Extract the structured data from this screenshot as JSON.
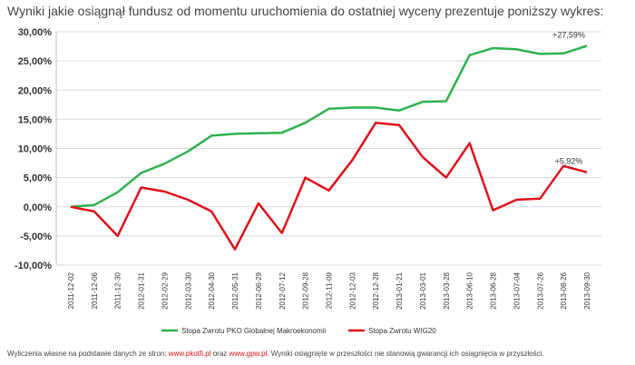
{
  "header": {
    "title": "Wyniki jakie osiągnął fundusz od momentu uruchomienia do ostatniej wyceny prezentuje poniższy wykres:"
  },
  "chart_data": {
    "type": "line",
    "title": "",
    "xlabel": "",
    "ylabel": "",
    "categories": [
      "2011-12-02",
      "2011-12-06",
      "2011-12-30",
      "2012-01-31",
      "2012-02-29",
      "2012-03-30",
      "2012-04-30",
      "2012-05-31",
      "2012-06-29",
      "2012-07-12",
      "2012-09-28",
      "2012-11-09",
      "2012-12-03",
      "2012-12-28",
      "2013-01-21",
      "2013-03-01",
      "2013-03-28",
      "2013-06-10",
      "2013-06-28",
      "2013-07-04",
      "2013-07-26",
      "2013-08-26",
      "2013-09-30"
    ],
    "yticks": [
      "30,00%",
      "25,00%",
      "20,00%",
      "15,00%",
      "10,00%",
      "5,00%",
      "0,00%",
      "-5,00%",
      "-10,00%"
    ],
    "ylim": [
      -10,
      30
    ],
    "grid": "horizontal",
    "legend_position": "bottom",
    "series": [
      {
        "name": "Stopa Zwrotu PKO Globalnej Makroekonomii",
        "color": "#2eb24f",
        "values": [
          0,
          0.3,
          2.5,
          5.8,
          7.4,
          9.5,
          12.2,
          12.5,
          12.6,
          12.7,
          14.4,
          16.8,
          17.0,
          17.0,
          16.5,
          18.0,
          18.1,
          26.0,
          27.2,
          27.0,
          26.2,
          26.3,
          27.59
        ]
      },
      {
        "name": "Stopa Zwrotu WIG20",
        "color": "#e0101a",
        "values": [
          0,
          -0.8,
          -5.0,
          3.3,
          2.6,
          1.2,
          -0.8,
          -7.3,
          0.6,
          -4.5,
          5.0,
          2.8,
          8.0,
          14.4,
          14.0,
          8.5,
          5.0,
          10.9,
          -0.6,
          1.2,
          1.4,
          7.0,
          5.92
        ]
      }
    ],
    "annotations": [
      {
        "series": 0,
        "index": 22,
        "text": "+27,59%"
      },
      {
        "series": 1,
        "index": 22,
        "text": "+5,92%"
      }
    ]
  },
  "footer": {
    "prefix": "Wyliczenia własne na podstawie danych ze stron: ",
    "link1": "www.pkotfi.pl",
    "mid": " oraz ",
    "link2": "www.gpw.pl",
    "suffix": ". Wyniki osiągnięte w przeszłości nie stanowią gwarancji ich osiągnięcia w przyszłości."
  }
}
